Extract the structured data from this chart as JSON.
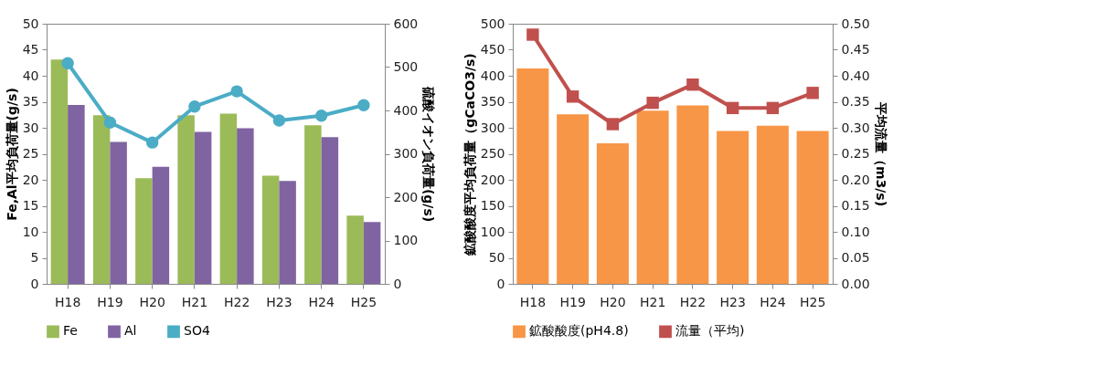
{
  "chart_data": [
    {
      "type": "bar",
      "ylabel": "Fe,Al平均負荷量(g/s)",
      "y2label": "硫酸イオン負荷量(g/s)",
      "categories": [
        "H18",
        "H19",
        "H20",
        "H21",
        "H22",
        "H23",
        "H24",
        "H25"
      ],
      "series": [
        {
          "name": "Fe",
          "color": "#9bbb59",
          "values": [
            43.1,
            32.4,
            20.3,
            32.4,
            32.7,
            20.8,
            30.5,
            13.1
          ]
        },
        {
          "name": "Al",
          "color": "#8064a2",
          "values": [
            34.4,
            27.3,
            22.5,
            29.2,
            29.9,
            19.8,
            28.2,
            11.9
          ]
        },
        {
          "name": "SO4",
          "type": "line",
          "axis": "y2",
          "marker": "circle",
          "color": "#4bacc6",
          "values": [
            509,
            372,
            326,
            409,
            444,
            377,
            388,
            412
          ]
        }
      ],
      "ylim": [
        0,
        50
      ],
      "yticks": [
        0,
        5,
        10,
        15,
        20,
        25,
        30,
        35,
        40,
        45,
        50
      ],
      "y2lim": [
        0,
        600
      ],
      "y2ticks": [
        0,
        100,
        200,
        300,
        400,
        500,
        600
      ],
      "grid": false,
      "legend": "bottom"
    },
    {
      "type": "bar",
      "ylabel": "鉱酸酸度平均負荷量（gCaCO3/s)",
      "y2label": "平均流量（m3/s)",
      "categories": [
        "H18",
        "H19",
        "H20",
        "H21",
        "H22",
        "H23",
        "H24",
        "H25"
      ],
      "series": [
        {
          "name": "鉱酸酸度(pH4.8)",
          "color": "#f79646",
          "values": [
            414,
            326,
            270,
            333,
            343,
            294,
            304,
            294
          ]
        },
        {
          "name": "流量（平均)",
          "type": "line",
          "axis": "y2",
          "marker": "square",
          "color": "#c0504d",
          "values": [
            0.479,
            0.36,
            0.307,
            0.348,
            0.383,
            0.338,
            0.338,
            0.367
          ]
        }
      ],
      "ylim": [
        0,
        500
      ],
      "yticks": [
        0,
        50,
        100,
        150,
        200,
        250,
        300,
        350,
        400,
        450,
        500
      ],
      "y2lim": [
        0,
        0.5
      ],
      "y2ticks": [
        {
          "value": 0,
          "label": "0.00"
        },
        {
          "value": 0.05,
          "label": "0.05"
        },
        {
          "value": 0.1,
          "label": "0.10"
        },
        {
          "value": 0.15,
          "label": "0.15"
        },
        {
          "value": 0.2,
          "label": "0.20"
        },
        {
          "value": 0.25,
          "label": "0.25"
        },
        {
          "value": 0.3,
          "label": "0.30"
        },
        {
          "value": 0.35,
          "label": "0.35"
        },
        {
          "value": 0.4,
          "label": "0.40"
        },
        {
          "value": 0.45,
          "label": "0.45"
        },
        {
          "value": 0.5,
          "label": "0.50"
        }
      ],
      "grid": false,
      "legend": "bottom"
    }
  ]
}
